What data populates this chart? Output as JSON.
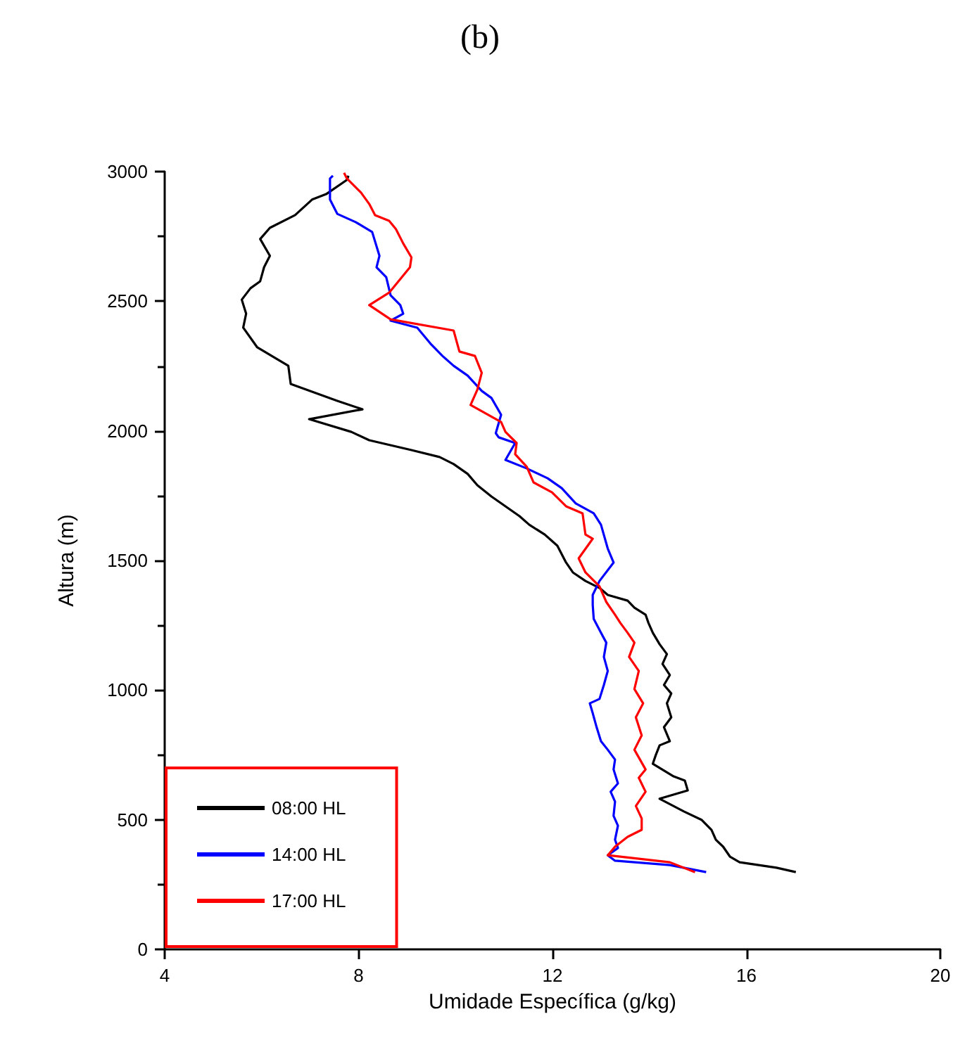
{
  "chart_data": {
    "type": "line",
    "title": "(b)",
    "xlabel": "Umidade Específica (g/kg)",
    "ylabel": "Altura (m)",
    "xlim": [
      4,
      20
    ],
    "xticks": [
      4,
      8,
      12,
      16,
      20
    ],
    "ylim": [
      0,
      3000
    ],
    "yticks": [
      0,
      500,
      1000,
      1500,
      2000,
      2500,
      3000
    ],
    "grid": false,
    "legend": "bottom left",
    "marker": "none",
    "line_style": "solid",
    "series": [
      {
        "name": "08:00 HL",
        "color": "#000000",
        "x": [
          17.02,
          16.62,
          15.86,
          15.66,
          15.52,
          15.37,
          15.28,
          15.08,
          14.71,
          14.21,
          14.79,
          14.73,
          14.5,
          14.07,
          14.13,
          14.21,
          14.42,
          14.3,
          14.45,
          14.36,
          14.45,
          14.3,
          14.42,
          14.27,
          14.36,
          14.21,
          14.07,
          13.98,
          13.92,
          13.69,
          13.55,
          13.14,
          12.97,
          12.68,
          12.42,
          12.28,
          12.1,
          11.84,
          11.52,
          11.32,
          11.03,
          10.74,
          10.45,
          10.25,
          9.96,
          9.67,
          9.09,
          8.22,
          7.85,
          6.98,
          8.08,
          7.56,
          6.6,
          6.55,
          5.91,
          5.62,
          5.68,
          5.59,
          5.77,
          5.97,
          6.05,
          6.17,
          5.97,
          6.17,
          6.69,
          7.04,
          7.33,
          7.76,
          7.79
        ],
        "values": [
          298,
          315,
          336,
          358,
          396,
          423,
          461,
          499,
          532,
          581,
          613,
          651,
          667,
          716,
          749,
          787,
          803,
          857,
          895,
          949,
          987,
          1020,
          1058,
          1101,
          1139,
          1177,
          1221,
          1259,
          1291,
          1318,
          1345,
          1367,
          1394,
          1421,
          1454,
          1492,
          1557,
          1600,
          1638,
          1671,
          1709,
          1747,
          1790,
          1834,
          1872,
          1899,
          1926,
          1964,
          1996,
          2045,
          2083,
          2116,
          2181,
          2251,
          2322,
          2398,
          2452,
          2506,
          2550,
          2577,
          2631,
          2675,
          2740,
          2783,
          2832,
          2892,
          2913,
          2968,
          2984
        ]
      },
      {
        "name": "14:00 HL",
        "color": "#0000ff",
        "x": [
          15.17,
          14.42,
          13.29,
          13.14,
          13.35,
          13.29,
          13.35,
          13.26,
          13.29,
          13.2,
          13.35,
          13.26,
          13.29,
          13.14,
          13.0,
          12.91,
          12.83,
          12.77,
          12.97,
          13.06,
          13.14,
          13.06,
          13.11,
          13.0,
          12.85,
          12.83,
          12.83,
          12.97,
          13.26,
          13.14,
          13.0,
          12.85,
          12.48,
          12.19,
          11.9,
          11.47,
          11.03,
          11.23,
          10.89,
          10.83,
          10.94,
          10.74,
          10.54,
          10.25,
          9.96,
          9.73,
          9.5,
          9.21,
          8.66,
          8.92,
          8.86,
          8.66,
          8.57,
          8.37,
          8.43,
          8.28,
          7.94,
          7.56,
          7.41,
          7.41,
          7.47
        ],
        "values": [
          298,
          325,
          342,
          363,
          391,
          423,
          477,
          515,
          570,
          608,
          640,
          694,
          732,
          770,
          803,
          857,
          911,
          949,
          966,
          1020,
          1074,
          1128,
          1183,
          1221,
          1275,
          1329,
          1367,
          1421,
          1492,
          1546,
          1638,
          1682,
          1720,
          1779,
          1817,
          1855,
          1888,
          1953,
          1975,
          1991,
          2062,
          2127,
          2154,
          2213,
          2251,
          2289,
          2333,
          2398,
          2425,
          2452,
          2485,
          2523,
          2593,
          2631,
          2675,
          2767,
          2805,
          2837,
          2892,
          2973,
          2984
        ]
      },
      {
        "name": "17:00 HL",
        "color": "#ff0000",
        "x": [
          14.94,
          14.42,
          13.14,
          13.29,
          13.55,
          13.84,
          13.84,
          13.72,
          13.92,
          13.78,
          13.92,
          13.69,
          13.84,
          13.72,
          13.87,
          13.69,
          13.78,
          13.58,
          13.69,
          13.55,
          13.4,
          13.29,
          13.11,
          12.97,
          12.68,
          12.54,
          12.83,
          12.68,
          12.62,
          12.28,
          11.99,
          11.61,
          11.47,
          11.23,
          11.26,
          11.03,
          10.94,
          10.31,
          10.45,
          10.54,
          10.4,
          10.08,
          9.96,
          8.66,
          8.22,
          8.63,
          9.06,
          9.09,
          8.92,
          8.77,
          8.63,
          8.34,
          8.22,
          8.05,
          7.76,
          7.7
        ],
        "values": [
          298,
          336,
          363,
          396,
          434,
          461,
          505,
          553,
          608,
          662,
          694,
          770,
          825,
          895,
          949,
          1004,
          1074,
          1128,
          1183,
          1221,
          1259,
          1291,
          1340,
          1400,
          1454,
          1508,
          1584,
          1600,
          1682,
          1709,
          1763,
          1801,
          1861,
          1910,
          1953,
          1996,
          2034,
          2100,
          2159,
          2224,
          2289,
          2306,
          2387,
          2430,
          2485,
          2533,
          2631,
          2669,
          2723,
          2778,
          2810,
          2832,
          2875,
          2919,
          2973,
          2995
        ]
      }
    ]
  }
}
